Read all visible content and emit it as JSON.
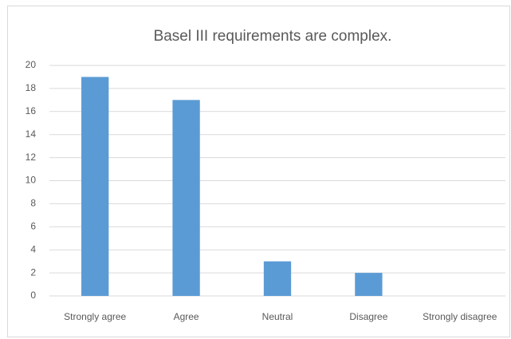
{
  "chart_data": {
    "type": "bar",
    "title": "Basel III requirements are complex.",
    "categories": [
      "Strongly agree",
      "Agree",
      "Neutral",
      "Disagree",
      "Strongly disagree"
    ],
    "values": [
      19,
      17,
      3,
      2,
      0
    ],
    "color": "#5b9bd5",
    "ylim": [
      0,
      20
    ],
    "yticks": [
      0,
      2,
      4,
      6,
      8,
      10,
      12,
      14,
      16,
      18,
      20
    ],
    "grid": true
  }
}
